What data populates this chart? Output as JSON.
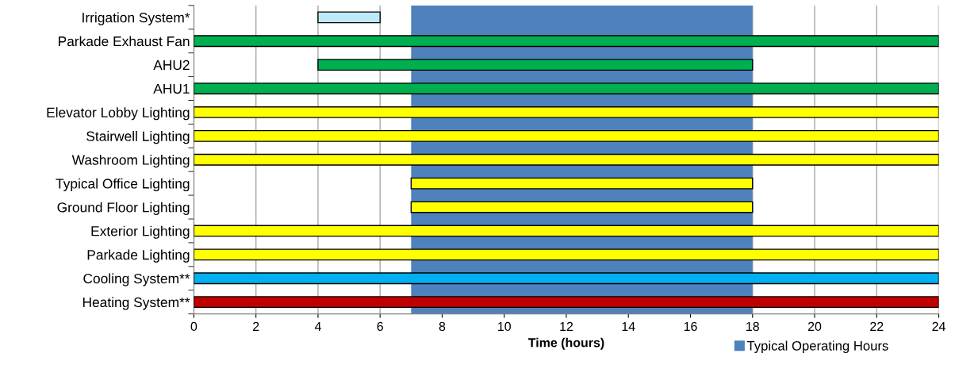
{
  "chart_data": {
    "type": "bar",
    "orientation": "horizontal",
    "xlabel": "Time (hours)",
    "categories": [
      "Irrigation System*",
      "Parkade Exhaust Fan",
      "AHU2",
      "AHU1",
      "Elevator Lobby Lighting",
      "Stairwell Lighting",
      "Washroom Lighting",
      "Typical Office Lighting",
      "Ground Floor Lighting",
      "Exterior Lighting",
      "Parkade Lighting",
      "Cooling System**",
      "Heating System**"
    ],
    "base": [
      4,
      0,
      4,
      0,
      0,
      0,
      0,
      7,
      7,
      0,
      0,
      0,
      0
    ],
    "values": [
      2,
      24,
      14,
      24,
      24,
      24,
      24,
      11,
      11,
      24,
      24,
      24,
      24
    ],
    "colors": [
      "#bde9fb",
      "#00b050",
      "#00b050",
      "#00b050",
      "#ffff00",
      "#ffff00",
      "#ffff00",
      "#ffff00",
      "#ffff00",
      "#ffff00",
      "#ffff00",
      "#00b0f0",
      "#c00000"
    ],
    "xlim": [
      0,
      24
    ],
    "xticks": [
      0,
      2,
      4,
      6,
      8,
      10,
      12,
      14,
      16,
      18,
      20,
      22,
      24
    ],
    "bands": [
      {
        "axis": "x",
        "from": 7,
        "to": 18,
        "label": "Typical Operating Hours",
        "color": "#4f81bd"
      }
    ],
    "grid": "x",
    "legend": "bottom"
  }
}
